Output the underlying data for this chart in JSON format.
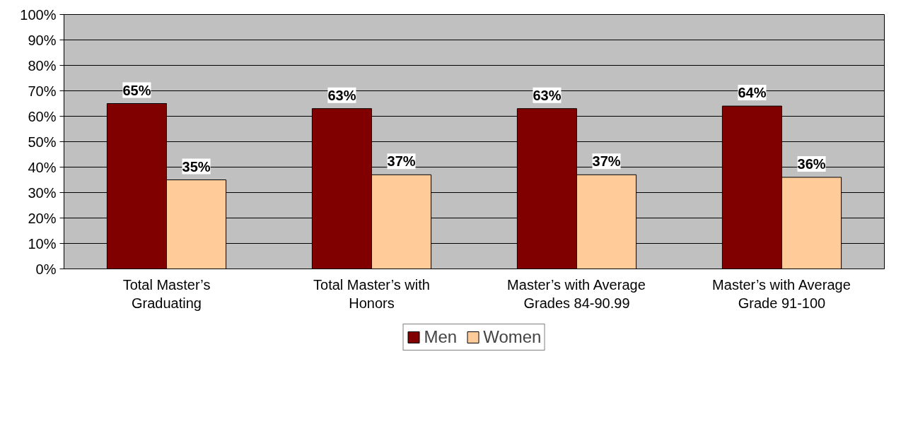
{
  "chart_data": {
    "type": "bar",
    "categories": [
      "Total Master’s\nGraduating",
      "Total Master’s with\nHonors",
      "Master’s with Average\nGrades 84-90.99",
      "Master’s with Average\nGrade 91-100"
    ],
    "series": [
      {
        "name": "Men",
        "color": "#800000",
        "values": [
          65,
          63,
          63,
          64
        ],
        "value_labels": [
          "65%",
          "63%",
          "63%",
          "64%"
        ]
      },
      {
        "name": "Women",
        "color": "#ffcc99",
        "values": [
          35,
          37,
          37,
          36
        ],
        "value_labels": [
          "35%",
          "37%",
          "37%",
          "36%"
        ]
      }
    ],
    "ylim": [
      0,
      100
    ],
    "yticks": [
      {
        "value": 0,
        "label": "0%"
      },
      {
        "value": 10,
        "label": "10%"
      },
      {
        "value": 20,
        "label": "20%"
      },
      {
        "value": 30,
        "label": "30%"
      },
      {
        "value": 40,
        "label": "40%"
      },
      {
        "value": 50,
        "label": "50%"
      },
      {
        "value": 60,
        "label": "60%"
      },
      {
        "value": 70,
        "label": "70%"
      },
      {
        "value": 80,
        "label": "80%"
      },
      {
        "value": 90,
        "label": "90%"
      },
      {
        "value": 100,
        "label": "100%"
      }
    ],
    "grid": "y",
    "legend": "bottom"
  }
}
